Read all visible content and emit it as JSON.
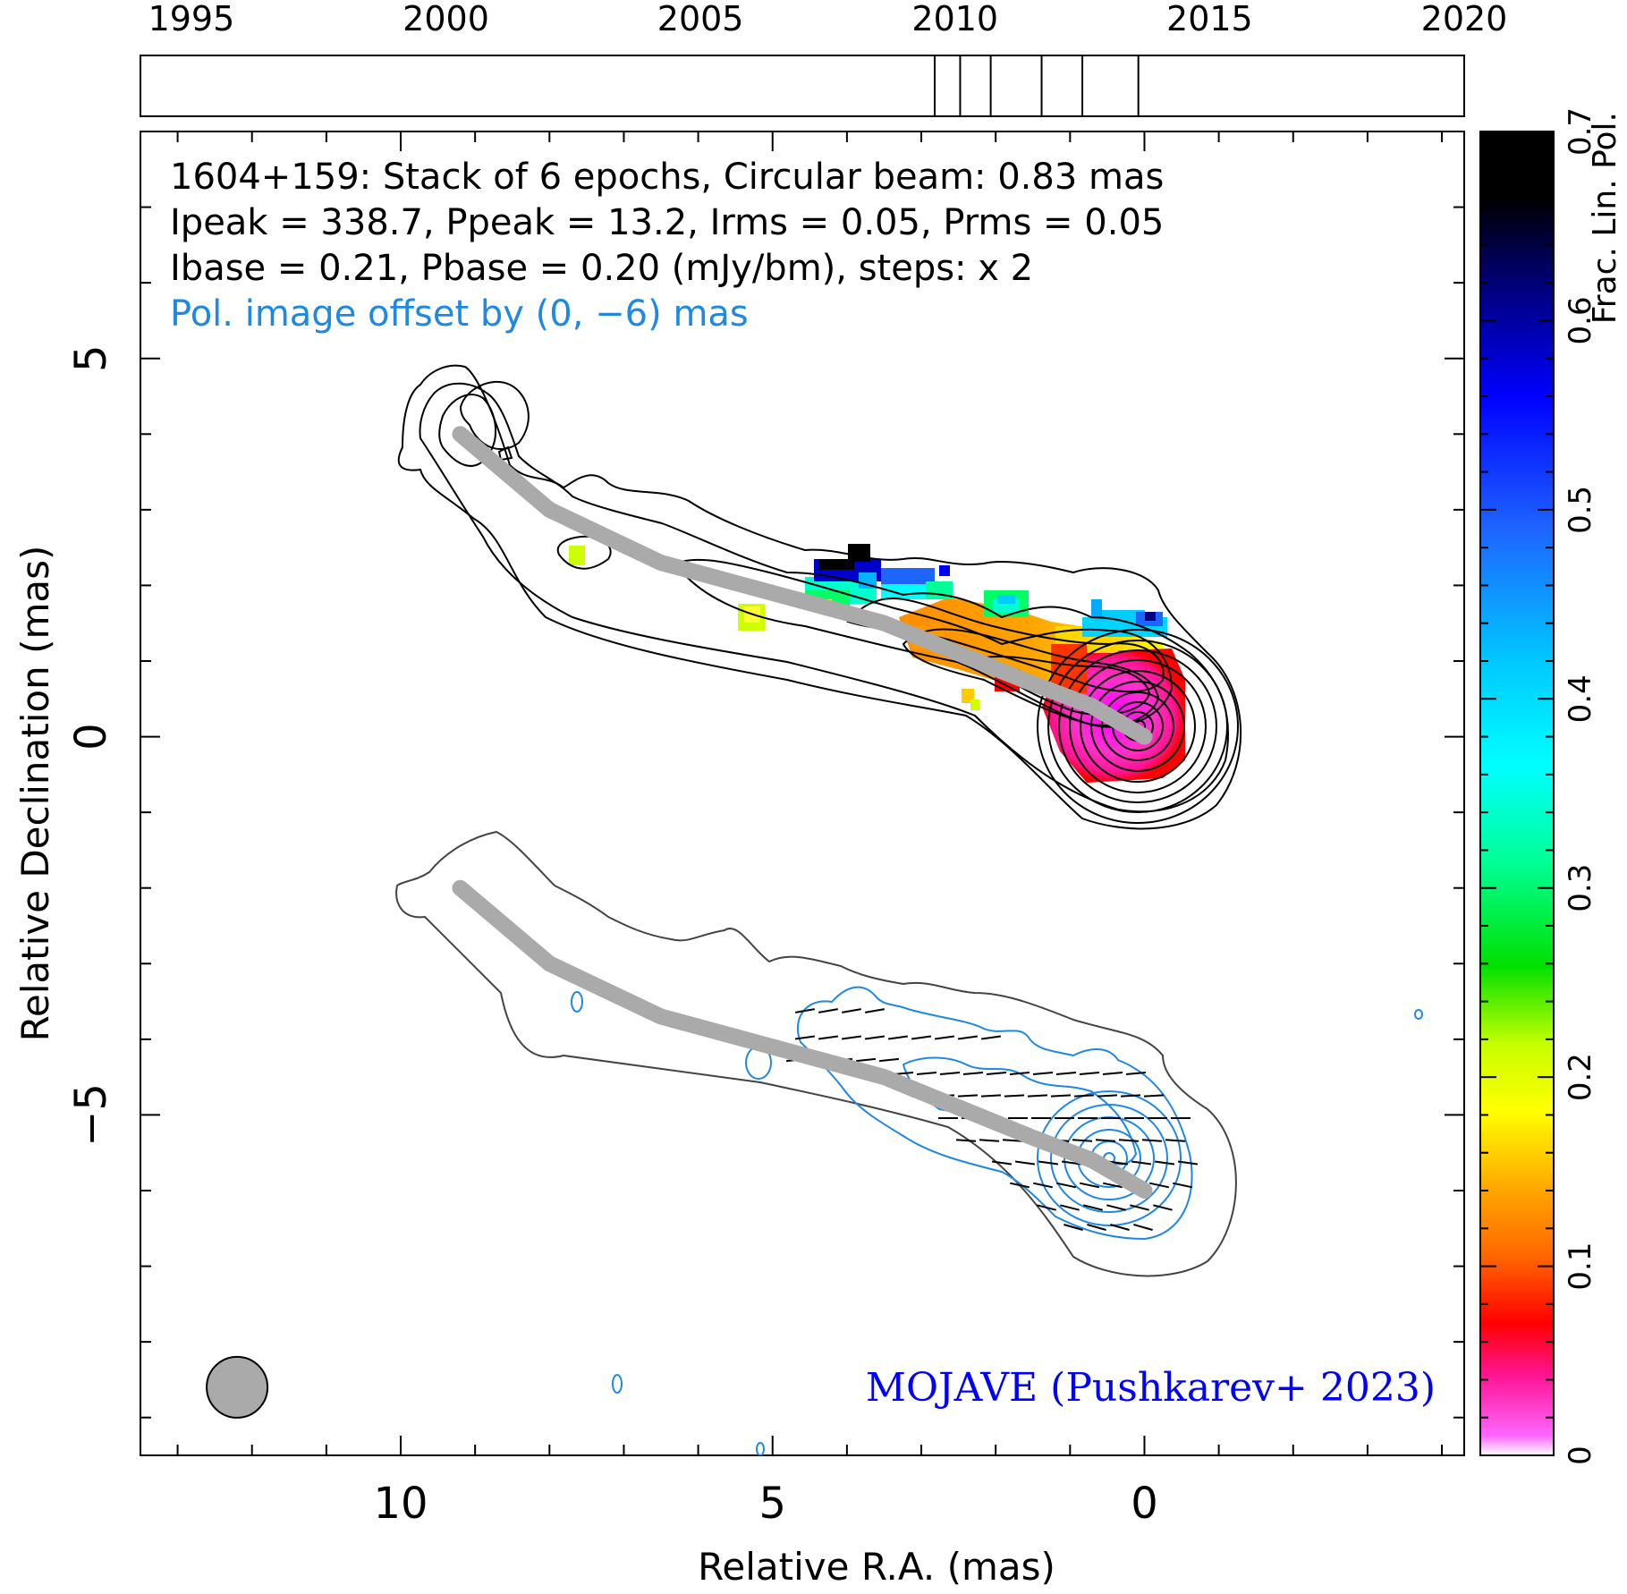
{
  "timeline": {
    "year_labels": [
      "1995",
      "2000",
      "2005",
      "2010",
      "2015",
      "2020"
    ],
    "year_range": [
      1994,
      2020
    ],
    "epochs": [
      2009.6,
      2010.1,
      2010.7,
      2011.7,
      2012.5,
      2013.6
    ]
  },
  "header": {
    "line1": "1604+159: Stack of 6 epochs, Circular beam: 0.83 mas",
    "line2": "Ipeak = 338.7, Ppeak = 13.2, Irms = 0.05, Prms = 0.05",
    "line3": "Ibase = 0.21, Pbase = 0.20 (mJy/bm), steps: x 2",
    "line4": "Pol. image offset by (0, −6) mas"
  },
  "credit": "MOJAVE (Pushkarev+ 2023)",
  "colorbar": {
    "label": "Frac. Lin. Pol.",
    "tick_labels": [
      "0",
      "0.1",
      "0.2",
      "0.3",
      "0.4",
      "0.5",
      "0.6",
      "0.7"
    ],
    "range": [
      0,
      0.7
    ]
  },
  "colors": {
    "total_intensity_contour": "#000000",
    "polarized_contour": "#1e88e5",
    "ridge_line": "#aaaaaa",
    "info_text_blue": "#1e88e5",
    "credit_blue": "#0000ff",
    "beam_fill": "#aaaaaa"
  },
  "chart_data": {
    "type": "contour",
    "xlabel": "Relative R.A. (mas)",
    "ylabel": "Relative Declination (mas)",
    "xlim": [
      13.5,
      -4.3
    ],
    "ylim": [
      -9.5,
      8.0
    ],
    "x_ticks": [
      10,
      5,
      0
    ],
    "x_tick_labels": [
      "10",
      "5",
      "0"
    ],
    "y_ticks": [
      5,
      0,
      -5
    ],
    "y_tick_labels": [
      "5",
      "0",
      "−5"
    ],
    "beam_diameter_mas": 0.83,
    "beam_center": [
      12.2,
      -8.6
    ],
    "pol_offset_mas": [
      0,
      -6
    ],
    "ridge_line": [
      [
        9.2,
        4.0
      ],
      [
        8.0,
        3.0
      ],
      [
        6.5,
        2.3
      ],
      [
        5.0,
        1.9
      ],
      [
        3.5,
        1.5
      ],
      [
        2.5,
        1.1
      ],
      [
        1.5,
        0.7
      ],
      [
        0.7,
        0.4
      ],
      [
        0.0,
        0.0
      ]
    ]
  }
}
